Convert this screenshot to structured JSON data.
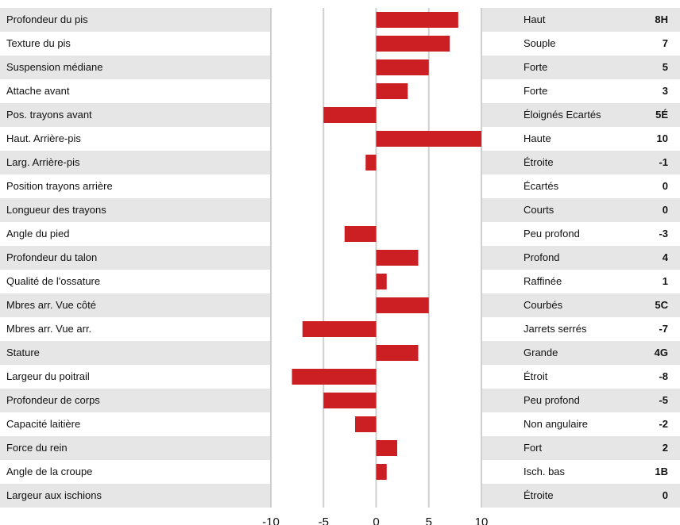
{
  "chart_data": {
    "type": "bar",
    "orientation": "horizontal",
    "categories": [
      "Profondeur du pis",
      "Texture du pis",
      "Suspension médiane",
      "Attache avant",
      "Pos. trayons avant",
      "Haut. Arrière-pis",
      "Larg. Arrière-pis",
      "Position trayons arrière",
      "Longueur des trayons",
      "Angle du pied",
      "Profondeur du talon",
      "Qualité de l'ossature",
      "Mbres arr. Vue côté",
      "Mbres arr. Vue arr.",
      "Stature",
      "Largeur du poitrail",
      "Profondeur de corps",
      "Capacité laitière",
      "Force du rein",
      "Angle de la croupe",
      "Largeur aux ischions"
    ],
    "values": [
      7.8,
      7,
      5,
      3,
      -5,
      10,
      -1,
      0,
      0,
      -3,
      4,
      1,
      5,
      -7,
      4,
      -8,
      -5,
      -2,
      2,
      1,
      0
    ],
    "descriptors": [
      "Haut",
      "Souple",
      "Forte",
      "Forte",
      "Éloignés Ecartés",
      "Haute",
      "Étroite",
      "Écartés",
      "Courts",
      "Peu profond",
      "Profond",
      "Raffinée",
      "Courbés",
      "Jarrets serrés",
      "Grande",
      "Étroit",
      "Peu profond",
      "Non angulaire",
      "Fort",
      "Isch. bas",
      "Étroite"
    ],
    "scores": [
      "8H",
      "7",
      "5",
      "3",
      "5É",
      "10",
      "-1",
      "0",
      "0",
      "-3",
      "4",
      "1",
      "5C",
      "-7",
      "4G",
      "-8",
      "-5",
      "-2",
      "2",
      "1B",
      "0"
    ],
    "xlim": [
      -10,
      10
    ],
    "xticks": [
      -10,
      -5,
      0,
      5,
      10
    ],
    "xtick_labels": [
      "-10",
      "-5",
      "0",
      "5",
      "10"
    ],
    "grid": true,
    "colors": {
      "bar": "#cc1f24",
      "row_shade": "#e6e6e6",
      "grid": "#cfcfcf"
    }
  }
}
